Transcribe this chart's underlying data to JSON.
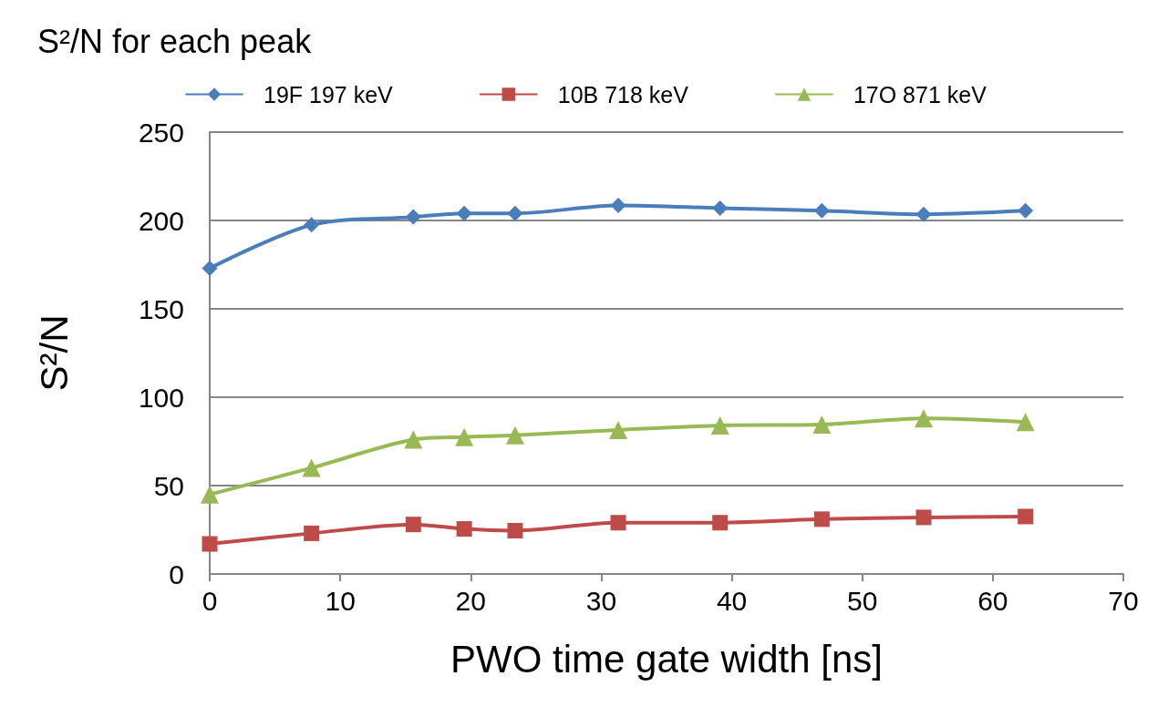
{
  "chart_data": {
    "type": "line",
    "title": "S²/N for each peak",
    "xlabel": "PWO time gate width [ns]",
    "ylabel": "S²/N",
    "x": [
      0,
      7.8,
      15.6,
      19.5,
      23.4,
      31.3,
      39.1,
      46.9,
      54.7,
      62.5
    ],
    "series": [
      {
        "name": "19F 197 keV",
        "color": "#4a7ebb",
        "marker": "diamond",
        "values": [
          173,
          197.5,
          202,
          204,
          204,
          208.5,
          207,
          205.5,
          203.5,
          205.5
        ]
      },
      {
        "name": "10B 718 keV",
        "color": "#be4b48",
        "marker": "square",
        "values": [
          17,
          23,
          28,
          25.5,
          24.5,
          29,
          29,
          31,
          32,
          32.5
        ]
      },
      {
        "name": "17O 871 keV",
        "color": "#98b954",
        "marker": "triangle",
        "values": [
          45,
          60,
          76,
          77.5,
          78.5,
          81.5,
          84,
          84.5,
          88,
          86
        ]
      }
    ],
    "xlim": [
      0,
      70
    ],
    "xticks": [
      0,
      10,
      20,
      30,
      40,
      50,
      60,
      70
    ],
    "ylim": [
      0,
      250
    ],
    "yticks": [
      0,
      50,
      100,
      150,
      200,
      250
    ],
    "grid": "y",
    "legend": "top",
    "line_style": "solid"
  }
}
